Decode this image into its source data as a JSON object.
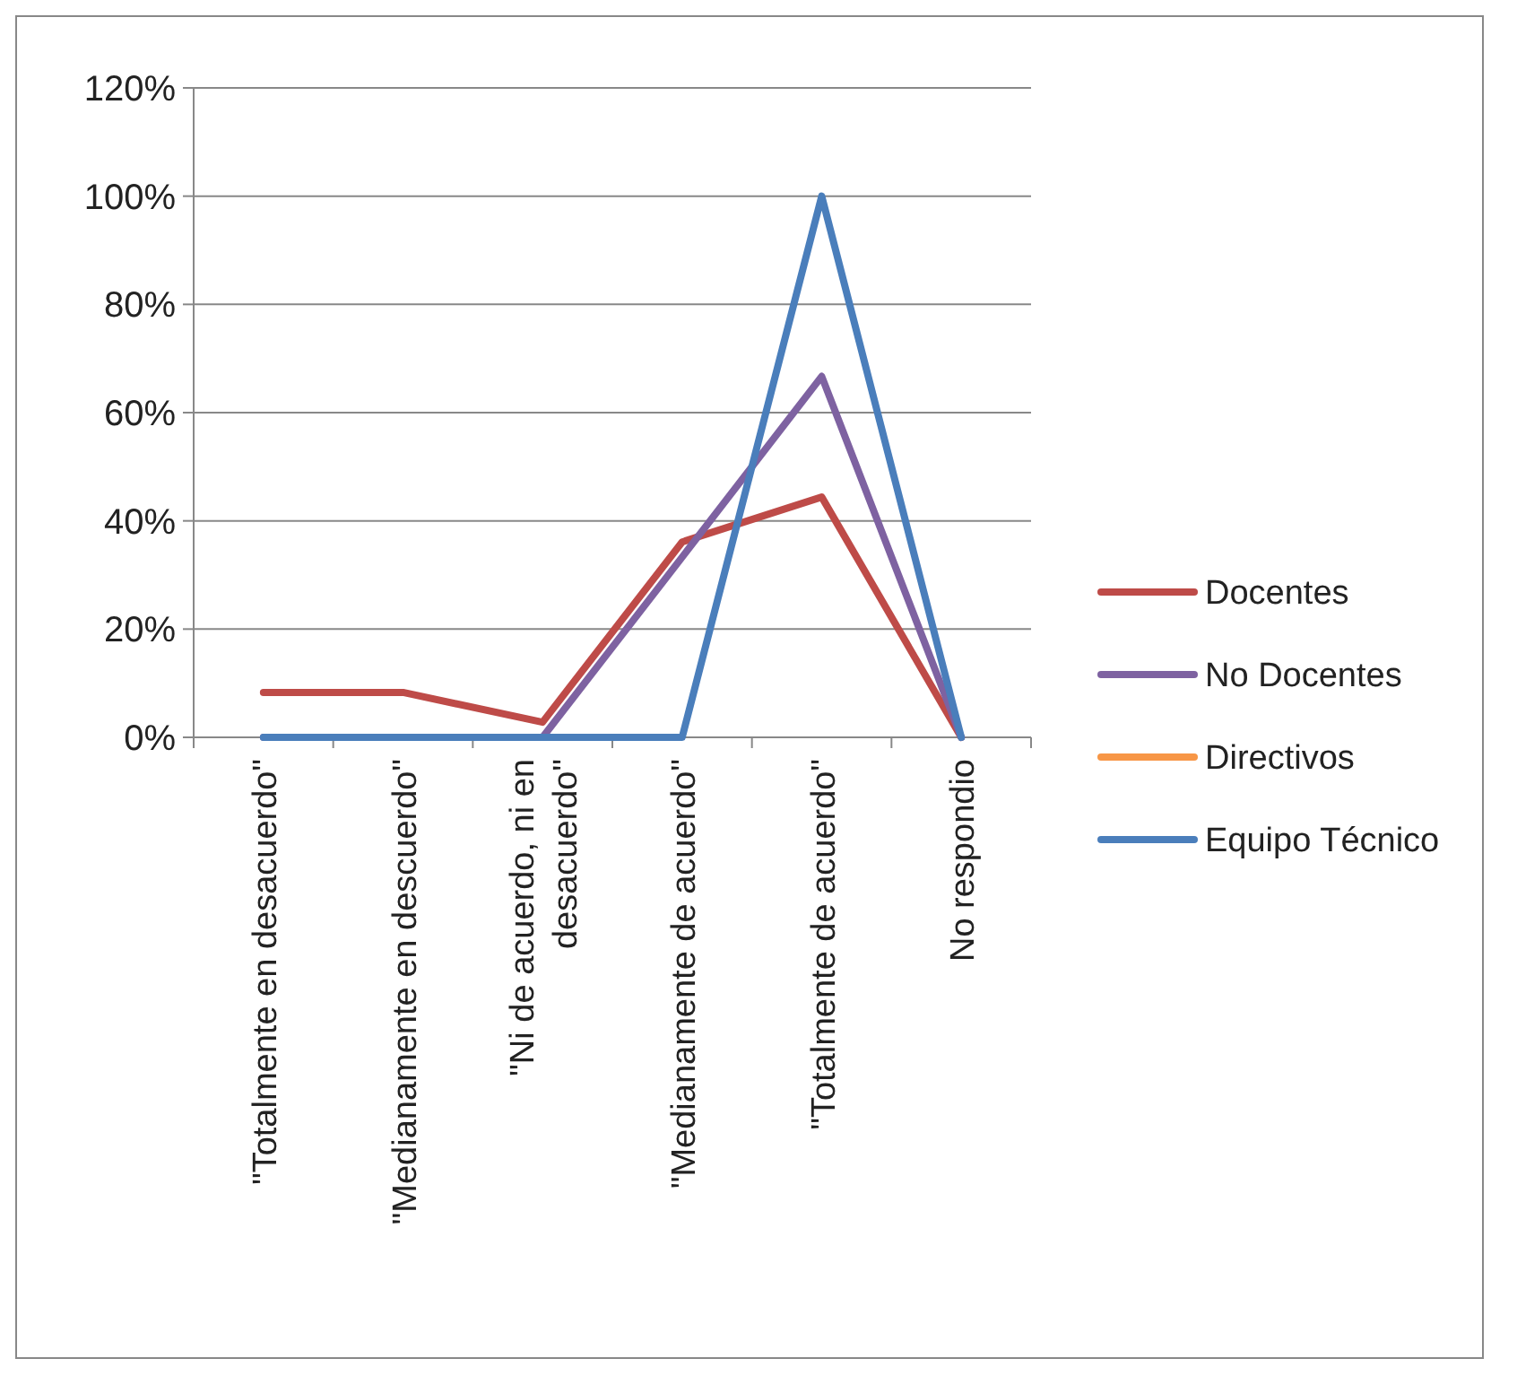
{
  "chart_data": {
    "type": "line",
    "categories": [
      "\"Totalmente en desacuerdo\"",
      "\"Medianamente en descuerdo\"",
      "\"Ni de acuerdo, ni en desacuerdo\"",
      "\"Medianamente de acuerdo\"",
      "\"Totalmente de acuerdo\"",
      "No respondio"
    ],
    "series": [
      {
        "name": "Docentes",
        "color": "#be4b48",
        "values": [
          8.3,
          8.3,
          2.8,
          36.1,
          44.4,
          0
        ]
      },
      {
        "name": "No Docentes",
        "color": "#7e62a1",
        "values": [
          0,
          0,
          0,
          33.3,
          66.7,
          0
        ]
      },
      {
        "name": "Directivos",
        "color": "#f79646",
        "values": [
          null,
          null,
          null,
          null,
          null,
          null
        ]
      },
      {
        "name": "Equipo Técnico",
        "color": "#4a7ebb",
        "values": [
          0,
          0,
          0,
          0,
          100,
          0
        ]
      }
    ],
    "ylim": [
      0,
      120
    ],
    "yticks": [
      {
        "value": 0,
        "label": "0%"
      },
      {
        "value": 20,
        "label": "20%"
      },
      {
        "value": 40,
        "label": "40%"
      },
      {
        "value": 60,
        "label": "60%"
      },
      {
        "value": 80,
        "label": "80%"
      },
      {
        "value": 100,
        "label": "100%"
      },
      {
        "value": 120,
        "label": "120%"
      }
    ],
    "grid": "y",
    "legend": "right",
    "marker": "none",
    "line_style": "solid"
  }
}
